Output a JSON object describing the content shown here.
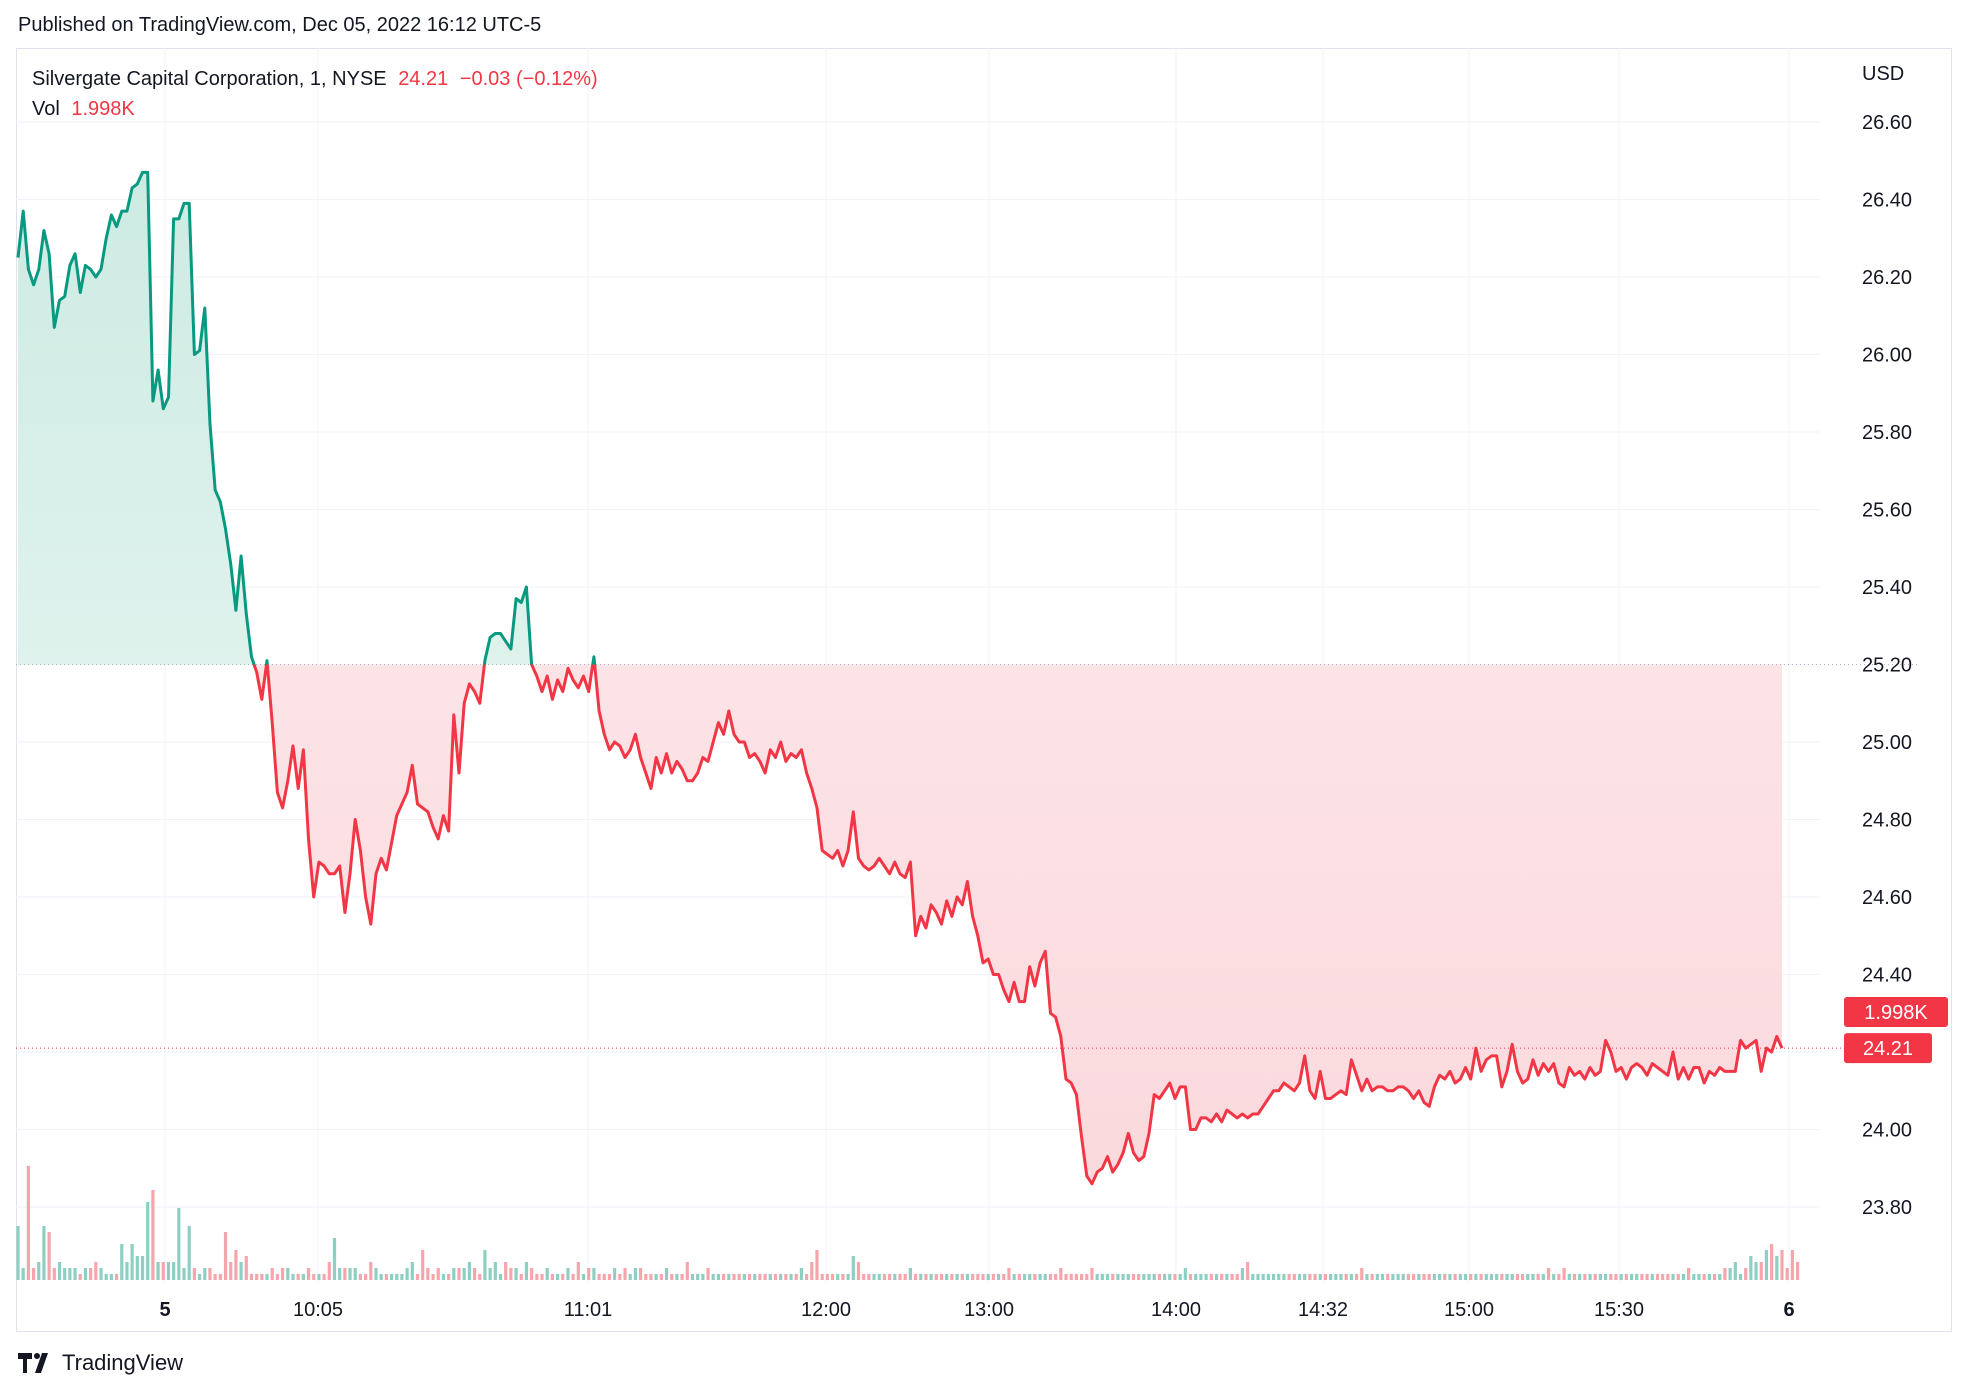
{
  "header": {
    "published": "Published on TradingView.com, Dec 05, 2022 16:12 UTC-5"
  },
  "legend": {
    "symbol": "Silvergate Capital Corporation, 1, NYSE",
    "price": "24.21",
    "change": "−0.03 (−0.12%)",
    "vol_label": "Vol",
    "vol_value": "1.998K"
  },
  "price_scale": {
    "currency": "USD",
    "ticks": [
      "26.60",
      "26.40",
      "26.20",
      "26.00",
      "25.80",
      "25.60",
      "25.40",
      "25.20",
      "25.00",
      "24.80",
      "24.60",
      "24.40",
      "24.20",
      "24.00",
      "23.80"
    ],
    "last_price_label": "24.21",
    "last_volume_label": "1.998K"
  },
  "footer": {
    "brand": "TradingView"
  },
  "colors": {
    "up": "#089981",
    "down": "#f23645",
    "up_fill": "#e3f4ef",
    "down_fill": "#fde6e8",
    "vol_up": "#8fcfc3",
    "vol_down": "#f5a6ad",
    "grid": "#f0f3fa"
  },
  "chart_data": {
    "type": "area",
    "title": "Silvergate Capital Corporation, 1, NYSE",
    "baseline": 25.2,
    "last": 24.21,
    "ylim": [
      23.6,
      26.7
    ],
    "x_ticks": [
      "5",
      "10:05",
      "11:01",
      "12:00",
      "13:00",
      "14:00",
      "14:32",
      "15:00",
      "15:30",
      "6"
    ],
    "series": [
      {
        "name": "Price",
        "values": [
          26.25,
          26.37,
          26.22,
          26.18,
          26.22,
          26.32,
          26.26,
          26.07,
          26.14,
          26.15,
          26.23,
          26.26,
          26.16,
          26.23,
          26.22,
          26.2,
          26.22,
          26.3,
          26.36,
          26.33,
          26.37,
          26.37,
          26.43,
          26.44,
          26.47,
          26.47,
          25.88,
          25.96,
          25.86,
          25.89,
          26.35,
          26.35,
          26.39,
          26.39,
          26.0,
          26.01,
          26.12,
          25.82,
          25.65,
          25.62,
          25.55,
          25.46,
          25.34,
          25.48,
          25.33,
          25.22,
          25.18,
          25.11,
          25.21,
          25.05,
          24.87,
          24.83,
          24.9,
          24.99,
          24.88,
          24.98,
          24.75,
          24.6,
          24.69,
          24.68,
          24.66,
          24.66,
          24.68,
          24.56,
          24.66,
          24.8,
          24.72,
          24.6,
          24.53,
          24.66,
          24.7,
          24.67,
          24.74,
          24.81,
          24.84,
          24.87,
          24.94,
          24.84,
          24.83,
          24.82,
          24.78,
          24.75,
          24.81,
          24.77,
          25.07,
          24.92,
          25.1,
          25.15,
          25.13,
          25.1,
          25.21,
          25.27,
          25.28,
          25.28,
          25.26,
          25.24,
          25.37,
          25.36,
          25.4,
          25.2,
          25.17,
          25.13,
          25.17,
          25.11,
          25.16,
          25.13,
          25.19,
          25.16,
          25.14,
          25.17,
          25.13,
          25.22,
          25.08,
          25.02,
          24.98,
          25.0,
          24.99,
          24.96,
          24.98,
          25.02,
          24.96,
          24.92,
          24.88,
          24.96,
          24.92,
          24.97,
          24.92,
          24.95,
          24.93,
          24.9,
          24.9,
          24.92,
          24.96,
          24.95,
          25.0,
          25.05,
          25.02,
          25.08,
          25.02,
          25.0,
          25.0,
          24.96,
          24.97,
          24.95,
          24.92,
          24.98,
          24.96,
          25.0,
          24.95,
          24.97,
          24.96,
          24.98,
          24.92,
          24.88,
          24.83,
          24.72,
          24.71,
          24.7,
          24.72,
          24.68,
          24.72,
          24.82,
          24.7,
          24.68,
          24.67,
          24.68,
          24.7,
          24.68,
          24.66,
          24.69,
          24.66,
          24.65,
          24.69,
          24.5,
          24.55,
          24.52,
          24.58,
          24.56,
          24.53,
          24.59,
          24.55,
          24.6,
          24.58,
          24.64,
          24.55,
          24.5,
          24.43,
          24.44,
          24.4,
          24.4,
          24.36,
          24.33,
          24.38,
          24.33,
          24.33,
          24.42,
          24.37,
          24.43,
          24.46,
          24.3,
          24.29,
          24.24,
          24.13,
          24.12,
          24.09,
          23.98,
          23.88,
          23.86,
          23.89,
          23.9,
          23.93,
          23.89,
          23.91,
          23.94,
          23.99,
          23.94,
          23.92,
          23.93,
          23.99,
          24.09,
          24.08,
          24.1,
          24.12,
          24.08,
          24.11,
          24.11,
          24.0,
          24.0,
          24.03,
          24.03,
          24.02,
          24.04,
          24.02,
          24.05,
          24.04,
          24.03,
          24.04,
          24.03,
          24.04,
          24.04,
          24.06,
          24.08,
          24.1,
          24.1,
          24.12,
          24.11,
          24.1,
          24.12,
          24.19,
          24.1,
          24.08,
          24.15,
          24.08,
          24.08,
          24.09,
          24.1,
          24.09,
          24.18,
          24.14,
          24.1,
          24.13,
          24.1,
          24.11,
          24.11,
          24.1,
          24.1,
          24.11,
          24.11,
          24.1,
          24.08,
          24.1,
          24.07,
          24.06,
          24.11,
          24.14,
          24.13,
          24.15,
          24.12,
          24.13,
          24.16,
          24.13,
          24.21,
          24.15,
          24.18,
          24.19,
          24.19,
          24.11,
          24.15,
          24.22,
          24.15,
          24.12,
          24.13,
          24.18,
          24.14,
          24.17,
          24.15,
          24.17,
          24.12,
          24.11,
          24.16,
          24.14,
          24.15,
          24.13,
          24.16,
          24.14,
          24.15,
          24.23,
          24.2,
          24.15,
          24.16,
          24.13,
          24.16,
          24.17,
          24.16,
          24.14,
          24.17,
          24.16,
          24.15,
          24.14,
          24.2,
          24.13,
          24.16,
          24.13,
          24.16,
          24.16,
          24.12,
          24.15,
          24.14,
          24.16,
          24.15,
          24.15,
          24.15,
          24.23,
          24.21,
          24.22,
          24.23,
          24.15,
          24.21,
          24.2,
          24.24,
          24.21
        ]
      },
      {
        "name": "Vol",
        "values": [
          0.9,
          0.2,
          1.9,
          0.2,
          0.3,
          0.9,
          0.8,
          0.2,
          0.3,
          0.2,
          0.2,
          0.2,
          0.1,
          0.2,
          0.2,
          0.3,
          0.2,
          0.1,
          0.1,
          0.1,
          0.6,
          0.3,
          0.6,
          0.4,
          0.4,
          1.3,
          1.5,
          0.3,
          0.3,
          0.3,
          0.3,
          1.2,
          0.2,
          0.9,
          0.2,
          0.1,
          0.2,
          0.2,
          0.1,
          0.1,
          0.8,
          0.3,
          0.5,
          0.3,
          0.4,
          0.1,
          0.1,
          0.1,
          0.1,
          0.2,
          0.1,
          0.2,
          0.2,
          0.1,
          0.1,
          0.1,
          0.2,
          0.1,
          0.1,
          0.1,
          0.3,
          0.7,
          0.2,
          0.2,
          0.2,
          0.2,
          0.1,
          0.1,
          0.3,
          0.2,
          0.1,
          0.1,
          0.1,
          0.1,
          0.1,
          0.2,
          0.3,
          0.1,
          0.5,
          0.2,
          0.1,
          0.2,
          0.1,
          0.1,
          0.2,
          0.2,
          0.2,
          0.3,
          0.2,
          0.1,
          0.5,
          0.2,
          0.3,
          0.1,
          0.3,
          0.2,
          0.2,
          0.1,
          0.3,
          0.2,
          0.1,
          0.1,
          0.2,
          0.1,
          0.1,
          0.1,
          0.2,
          0.1,
          0.3,
          0.1,
          0.2,
          0.2,
          0.1,
          0.1,
          0.1,
          0.2,
          0.1,
          0.2,
          0.1,
          0.2,
          0.2,
          0.1,
          0.1,
          0.1,
          0.1,
          0.2,
          0.1,
          0.1,
          0.1,
          0.3,
          0.1,
          0.1,
          0.1,
          0.2,
          0.1,
          0.1,
          0.1,
          0.1,
          0.1,
          0.1,
          0.1,
          0.1,
          0.1,
          0.1,
          0.1,
          0.1,
          0.1,
          0.1,
          0.1,
          0.1,
          0.1,
          0.2,
          0.1,
          0.3,
          0.5,
          0.1,
          0.1,
          0.1,
          0.1,
          0.1,
          0.1,
          0.4,
          0.3,
          0.1,
          0.1,
          0.1,
          0.1,
          0.1,
          0.1,
          0.1,
          0.1,
          0.1,
          0.2,
          0.1,
          0.1,
          0.1,
          0.1,
          0.1,
          0.1,
          0.1,
          0.1,
          0.1,
          0.1,
          0.1,
          0.1,
          0.1,
          0.1,
          0.1,
          0.1,
          0.1,
          0.1,
          0.2,
          0.1,
          0.1,
          0.1,
          0.1,
          0.1,
          0.1,
          0.1,
          0.1,
          0.1,
          0.2,
          0.1,
          0.1,
          0.1,
          0.1,
          0.1,
          0.2,
          0.1,
          0.1,
          0.1,
          0.1,
          0.1,
          0.1,
          0.1,
          0.1,
          0.1,
          0.1,
          0.1,
          0.1,
          0.1,
          0.1,
          0.1,
          0.1,
          0.1,
          0.2,
          0.1,
          0.1,
          0.1,
          0.1,
          0.1,
          0.1,
          0.1,
          0.1,
          0.1,
          0.1,
          0.2,
          0.3,
          0.1,
          0.1,
          0.1,
          0.1,
          0.1,
          0.1,
          0.1,
          0.1,
          0.1,
          0.1,
          0.1,
          0.1,
          0.1,
          0.1,
          0.1,
          0.1,
          0.1,
          0.1,
          0.1,
          0.1,
          0.1,
          0.2,
          0.1,
          0.1,
          0.1,
          0.1,
          0.1,
          0.1,
          0.1,
          0.1,
          0.1,
          0.1,
          0.1,
          0.1,
          0.1,
          0.1,
          0.1,
          0.1,
          0.1,
          0.1,
          0.1,
          0.1,
          0.1,
          0.1,
          0.1,
          0.1,
          0.1,
          0.1,
          0.1,
          0.1,
          0.1,
          0.1,
          0.1,
          0.1,
          0.1,
          0.1,
          0.1,
          0.2,
          0.1,
          0.1,
          0.2,
          0.1,
          0.1,
          0.1,
          0.1,
          0.1,
          0.1,
          0.1,
          0.1,
          0.1,
          0.1,
          0.1,
          0.1,
          0.1,
          0.1,
          0.1,
          0.1,
          0.1,
          0.1,
          0.1,
          0.1,
          0.1,
          0.1,
          0.1,
          0.2,
          0.1,
          0.1,
          0.1,
          0.1,
          0.1,
          0.1,
          0.2,
          0.2,
          0.3,
          0.1,
          0.2,
          0.4,
          0.3,
          0.3,
          0.5,
          0.6,
          0.4,
          0.5,
          0.2,
          0.5,
          0.3
        ]
      }
    ]
  }
}
